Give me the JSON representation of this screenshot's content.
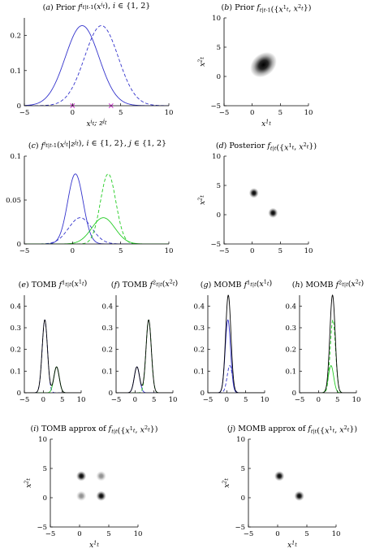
{
  "colors": {
    "blue": "#3333cc",
    "green": "#22cc22",
    "black": "#000000",
    "magenta": "#cc33cc"
  },
  "chart_data": [
    {
      "id": "a",
      "type": "line",
      "title": "(a) Prior f^i_{t|t-1}(x^i_t), i ∈ {1, 2}",
      "xlabel": "x^i_t; z^j_t",
      "ylabel": "",
      "xlim": [
        -5,
        10
      ],
      "ylim": [
        0,
        0.25
      ],
      "xticks": [
        -5,
        0,
        5,
        10
      ],
      "yticks": [
        0,
        0.1,
        0.2
      ],
      "series": [
        {
          "kind": "gauss",
          "style": "solid",
          "color": "blue",
          "components": [
            {
              "w": 1,
              "mu": 1,
              "sigma": 1.75
            }
          ]
        },
        {
          "kind": "gauss",
          "style": "dashed",
          "color": "blue",
          "components": [
            {
              "w": 1,
              "mu": 3,
              "sigma": 1.75
            }
          ]
        }
      ],
      "markers": [
        {
          "x": 0,
          "y": 0,
          "symbol": "x",
          "color": "magenta"
        },
        {
          "x": 4,
          "y": 0,
          "symbol": "x",
          "color": "magenta"
        }
      ]
    },
    {
      "id": "b",
      "type": "heatmap",
      "title": "(b) Prior f_{t|t-1}({x^1_t, x^2_t})",
      "xlabel": "x^1_t",
      "ylabel": "x^2_t",
      "xlim": [
        -5,
        10
      ],
      "ylim": [
        -5,
        10
      ],
      "xticks": [
        -5,
        0,
        5,
        10
      ],
      "yticks": [
        -5,
        0,
        5,
        10
      ],
      "blobs": [
        {
          "x": 2,
          "y": 2,
          "rx": 2.6,
          "ry": 1.9,
          "angle": 40,
          "weight": 1
        }
      ]
    },
    {
      "id": "c",
      "type": "line",
      "title": "(c) f^i_{t|t-1}(x^i_t|z^j_t), i ∈ {1, 2}, j ∈ {1, 2}",
      "xlabel": "",
      "ylabel": "",
      "xlim": [
        -5,
        10
      ],
      "ylim": [
        0,
        0.1
      ],
      "xticks": [
        -5,
        0,
        5,
        10
      ],
      "yticks": [
        0,
        0.05,
        0.1
      ],
      "series": [
        {
          "kind": "gauss",
          "style": "solid",
          "color": "blue",
          "components": [
            {
              "w": 0.16,
              "mu": 0.3,
              "sigma": 0.8
            }
          ]
        },
        {
          "kind": "gauss",
          "style": "dashed",
          "color": "blue",
          "components": [
            {
              "w": 0.09,
              "mu": 0.8,
              "sigma": 1.2
            }
          ]
        },
        {
          "kind": "gauss",
          "style": "solid",
          "color": "green",
          "components": [
            {
              "w": 0.09,
              "mu": 3.2,
              "sigma": 1.2
            }
          ]
        },
        {
          "kind": "gauss",
          "style": "dashed",
          "color": "green",
          "components": [
            {
              "w": 0.16,
              "mu": 3.7,
              "sigma": 0.8
            }
          ]
        }
      ]
    },
    {
      "id": "d",
      "type": "heatmap",
      "title": "(d) Posterior f_{t|t}({x^1_t, x^2_t})",
      "xlabel": "",
      "ylabel": "x^2_t",
      "xlim": [
        -5,
        10
      ],
      "ylim": [
        -5,
        10
      ],
      "xticks": [
        -5,
        0,
        5,
        10
      ],
      "yticks": [
        -5,
        0,
        5,
        10
      ],
      "blobs": [
        {
          "x": 0.3,
          "y": 3.7,
          "rx": 0.85,
          "ry": 0.85,
          "angle": 0,
          "weight": 1
        },
        {
          "x": 3.7,
          "y": 0.3,
          "rx": 0.85,
          "ry": 0.85,
          "angle": 0,
          "weight": 1
        }
      ]
    },
    {
      "id": "e",
      "type": "line",
      "title": "(e) TOMB f^1_{t|t}(x^1_t)",
      "xlabel": "",
      "ylabel": "",
      "xlim": [
        -5,
        10
      ],
      "ylim": [
        0,
        0.45
      ],
      "xticks": [
        -5,
        0,
        5,
        10
      ],
      "yticks": [
        0,
        0.1,
        0.2,
        0.3,
        0.4
      ],
      "series": [
        {
          "kind": "gauss",
          "style": "dashed",
          "color": "blue",
          "components": [
            {
              "w": 0.59,
              "mu": 0.4,
              "sigma": 0.7
            }
          ]
        },
        {
          "kind": "gauss",
          "style": "solid",
          "color": "green",
          "components": [
            {
              "w": 0.21,
              "mu": 3.5,
              "sigma": 0.7
            }
          ]
        },
        {
          "kind": "gauss",
          "style": "solid",
          "color": "black",
          "components": [
            {
              "w": 0.59,
              "mu": 0.4,
              "sigma": 0.7
            },
            {
              "w": 0.21,
              "mu": 3.5,
              "sigma": 0.7
            }
          ]
        }
      ]
    },
    {
      "id": "f",
      "type": "line",
      "title": "(f) TOMB f^2_{t|t}(x^2_t)",
      "xlabel": "",
      "ylabel": "",
      "xlim": [
        -5,
        10
      ],
      "ylim": [
        0,
        0.45
      ],
      "xticks": [
        -5,
        0,
        5,
        10
      ],
      "yticks": [
        0,
        0.1,
        0.2,
        0.3,
        0.4
      ],
      "series": [
        {
          "kind": "gauss",
          "style": "solid",
          "color": "blue",
          "components": [
            {
              "w": 0.21,
              "mu": 0.5,
              "sigma": 0.7
            }
          ]
        },
        {
          "kind": "gauss",
          "style": "dashed",
          "color": "green",
          "components": [
            {
              "w": 0.59,
              "mu": 3.6,
              "sigma": 0.7
            }
          ]
        },
        {
          "kind": "gauss",
          "style": "solid",
          "color": "black",
          "components": [
            {
              "w": 0.21,
              "mu": 0.5,
              "sigma": 0.7
            },
            {
              "w": 0.59,
              "mu": 3.6,
              "sigma": 0.7
            }
          ]
        }
      ]
    },
    {
      "id": "g",
      "type": "line",
      "title": "(g) MOMB f^1_{t|t}(x^1_t)",
      "xlabel": "",
      "ylabel": "",
      "xlim": [
        -5,
        10
      ],
      "ylim": [
        0,
        0.45
      ],
      "xticks": [
        -5,
        0,
        5,
        10
      ],
      "yticks": [
        0,
        0.1,
        0.2,
        0.3,
        0.4
      ],
      "series": [
        {
          "kind": "gauss",
          "style": "dashed",
          "color": "blue",
          "components": [
            {
              "w": 0.22,
              "mu": 0.8,
              "sigma": 0.7
            }
          ]
        },
        {
          "kind": "gauss",
          "style": "solid",
          "color": "blue",
          "components": [
            {
              "w": 0.59,
              "mu": 0.3,
              "sigma": 0.7
            }
          ]
        },
        {
          "kind": "gauss",
          "style": "solid",
          "color": "black",
          "components": [
            {
              "w": 0.79,
              "mu": 0.4,
              "sigma": 0.7
            }
          ]
        }
      ]
    },
    {
      "id": "h",
      "type": "line",
      "title": "(h) MOMB f^2_{t|t}(x^2_t)",
      "xlabel": "",
      "ylabel": "",
      "xlim": [
        -5,
        10
      ],
      "ylim": [
        0,
        0.45
      ],
      "xticks": [
        -5,
        0,
        5,
        10
      ],
      "yticks": [
        0,
        0.1,
        0.2,
        0.3,
        0.4
      ],
      "series": [
        {
          "kind": "gauss",
          "style": "solid",
          "color": "green",
          "components": [
            {
              "w": 0.22,
              "mu": 3.3,
              "sigma": 0.7
            }
          ]
        },
        {
          "kind": "gauss",
          "style": "dashed",
          "color": "green",
          "components": [
            {
              "w": 0.59,
              "mu": 3.8,
              "sigma": 0.7
            }
          ]
        },
        {
          "kind": "gauss",
          "style": "solid",
          "color": "black",
          "components": [
            {
              "w": 0.79,
              "mu": 3.7,
              "sigma": 0.7
            }
          ]
        }
      ]
    },
    {
      "id": "i",
      "type": "heatmap",
      "title": "(i) TOMB approx of f_{t|t}({x^1_t, x^2_t})",
      "xlabel": "x^1_t",
      "ylabel": "x^2_t",
      "xlim": [
        -5,
        10
      ],
      "ylim": [
        -5,
        10
      ],
      "xticks": [
        -5,
        0,
        5,
        10
      ],
      "yticks": [
        -5,
        0,
        5,
        10
      ],
      "blobs": [
        {
          "x": 0.3,
          "y": 3.7,
          "rx": 0.85,
          "ry": 0.85,
          "angle": 0,
          "weight": 1
        },
        {
          "x": 3.7,
          "y": 0.3,
          "rx": 0.85,
          "ry": 0.85,
          "angle": 0,
          "weight": 1
        },
        {
          "x": 0.3,
          "y": 0.3,
          "rx": 0.85,
          "ry": 0.85,
          "angle": 0,
          "weight": 0.45
        },
        {
          "x": 3.7,
          "y": 3.7,
          "rx": 0.85,
          "ry": 0.85,
          "angle": 0,
          "weight": 0.45
        }
      ]
    },
    {
      "id": "j",
      "type": "heatmap",
      "title": "(j) MOMB approx of f_{t|t}({x^1_t, x^2_t})",
      "xlabel": "x^1_t",
      "ylabel": "x^2_t",
      "xlim": [
        -5,
        10
      ],
      "ylim": [
        -5,
        10
      ],
      "xticks": [
        -5,
        0,
        5,
        10
      ],
      "yticks": [
        -5,
        0,
        5,
        10
      ],
      "blobs": [
        {
          "x": 0.3,
          "y": 3.7,
          "rx": 0.85,
          "ry": 0.85,
          "angle": 0,
          "weight": 1
        },
        {
          "x": 3.7,
          "y": 0.3,
          "rx": 0.85,
          "ry": 0.85,
          "angle": 0,
          "weight": 1
        }
      ]
    }
  ]
}
